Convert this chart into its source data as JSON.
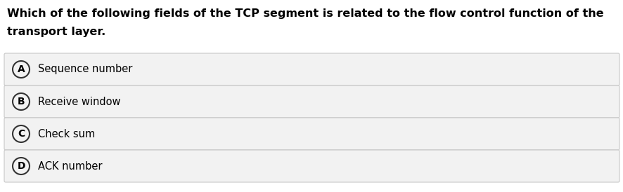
{
  "title_line1": "Which of the following fields of the TCP segment is related to the flow control function of the",
  "title_line2": "transport layer.",
  "options": [
    {
      "label": "A",
      "text": "Sequence number"
    },
    {
      "label": "B",
      "text": "Receive window"
    },
    {
      "label": "C",
      "text": "Check sum"
    },
    {
      "label": "D",
      "text": "ACK number"
    }
  ],
  "bg_color": "#ffffff",
  "option_bg_color": "#f2f2f2",
  "option_border_color": "#c8c8c8",
  "title_color": "#000000",
  "option_text_color": "#000000",
  "circle_edge_color": "#333333",
  "title_fontsize": 11.5,
  "option_fontsize": 10.5,
  "label_fontsize": 10.0,
  "fig_width": 8.87,
  "fig_height": 2.74,
  "dpi": 100
}
